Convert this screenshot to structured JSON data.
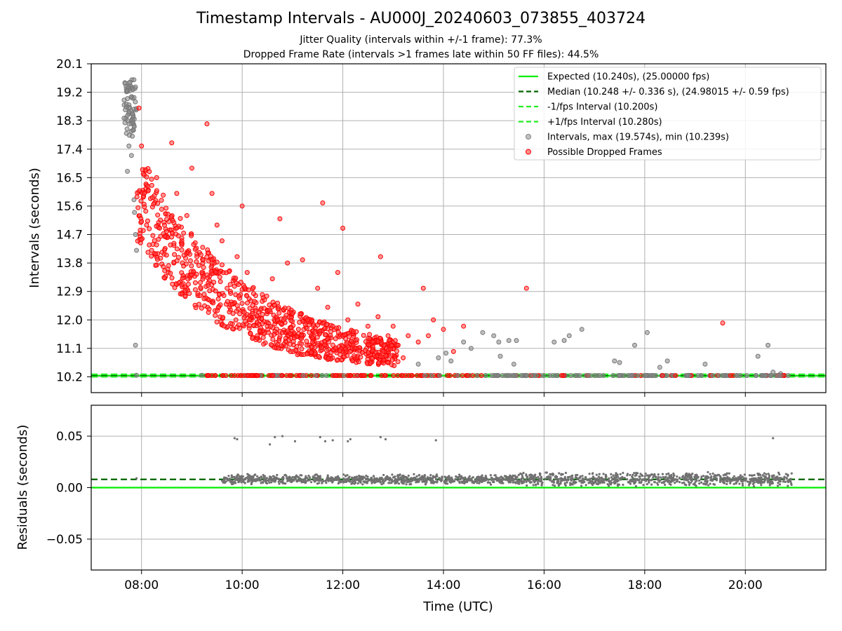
{
  "header": {
    "title": "Timestamp Intervals - AU000J_20240603_073855_403724",
    "subtitle1": "Jitter Quality (intervals within +/-1 frame): 77.3%",
    "subtitle2": "Dropped Frame Rate (intervals >1 frames late within 50 FF files): 44.5%"
  },
  "chart_data": [
    {
      "type": "scatter",
      "panel": "top",
      "ylabel": "Intervals (seconds)",
      "xlabel": "",
      "xlim_hours": [
        7.0,
        21.6
      ],
      "ylim": [
        9.7,
        20.1
      ],
      "yticks": [
        "10.2",
        "11.1",
        "12.0",
        "12.9",
        "13.8",
        "14.7",
        "15.6",
        "16.5",
        "17.4",
        "18.3",
        "19.2",
        "20.1"
      ],
      "xticks": [
        "08:00",
        "10:00",
        "12:00",
        "14:00",
        "16:00",
        "18:00",
        "20:00"
      ],
      "grid": true,
      "legend_position": "top-right",
      "lines": [
        {
          "name": "Expected (10.240s), (25.00000 fps)",
          "y": 10.24,
          "style": "solid",
          "color": "#00ee00"
        },
        {
          "name": "Median (10.248 +/- 0.336 s), (24.98015 +/- 0.59 fps)",
          "y": 10.248,
          "style": "dashed",
          "color": "#006400"
        },
        {
          "name": "-1/fps Interval (10.200s)",
          "y": 10.2,
          "style": "dashed",
          "color": "#22ee22"
        },
        {
          "name": "+1/fps Interval (10.280s)",
          "y": 10.28,
          "style": "dashed",
          "color": "#22ee22"
        }
      ],
      "series": [
        {
          "name": "Intervals, max (19.574s), min (10.239s)",
          "color": "#808080",
          "points": [
            [
              7.67,
              19.5
            ],
            [
              7.7,
              19.3
            ],
            [
              7.72,
              19.0
            ],
            [
              7.75,
              18.8
            ],
            [
              7.78,
              19.4
            ],
            [
              7.8,
              18.6
            ],
            [
              7.82,
              18.3
            ],
            [
              7.84,
              18.0
            ],
            [
              7.7,
              17.9
            ],
            [
              7.75,
              17.5
            ],
            [
              7.8,
              17.2
            ],
            [
              7.72,
              16.7
            ],
            [
              7.85,
              15.8
            ],
            [
              7.86,
              15.4
            ],
            [
              7.88,
              14.7
            ],
            [
              7.9,
              14.2
            ],
            [
              7.88,
              11.2
            ],
            [
              7.9,
              10.25
            ],
            [
              9.2,
              10.25
            ],
            [
              12.55,
              11.4
            ],
            [
              12.9,
              11.2
            ],
            [
              13.5,
              10.6
            ],
            [
              13.9,
              10.8
            ],
            [
              14.05,
              10.95
            ],
            [
              14.15,
              10.7
            ],
            [
              14.4,
              11.3
            ],
            [
              14.55,
              11.1
            ],
            [
              14.78,
              11.6
            ],
            [
              15.0,
              11.5
            ],
            [
              15.1,
              11.3
            ],
            [
              15.13,
              10.85
            ],
            [
              15.3,
              11.35
            ],
            [
              15.45,
              11.35
            ],
            [
              15.4,
              10.6
            ],
            [
              16.2,
              11.3
            ],
            [
              16.4,
              11.35
            ],
            [
              16.5,
              11.5
            ],
            [
              16.75,
              11.7
            ],
            [
              17.4,
              10.7
            ],
            [
              17.5,
              10.65
            ],
            [
              17.8,
              11.2
            ],
            [
              18.05,
              11.6
            ],
            [
              18.3,
              10.5
            ],
            [
              18.45,
              10.7
            ],
            [
              19.2,
              10.6
            ],
            [
              20.25,
              10.85
            ],
            [
              20.45,
              11.2
            ],
            [
              20.55,
              10.35
            ],
            [
              20.7,
              10.3
            ]
          ]
        },
        {
          "name": "Possible Dropped Frames",
          "color": "#ff0000",
          "points": [
            [
              7.95,
              18.7
            ],
            [
              8.0,
              17.5
            ],
            [
              8.05,
              16.0
            ],
            [
              8.1,
              15.0
            ],
            [
              8.2,
              14.2
            ],
            [
              8.3,
              16.5
            ],
            [
              8.4,
              15.5
            ],
            [
              8.5,
              14.8
            ],
            [
              8.6,
              17.6
            ],
            [
              8.7,
              16.0
            ],
            [
              8.8,
              14.5
            ],
            [
              8.9,
              15.3
            ],
            [
              9.0,
              16.8
            ],
            [
              9.1,
              14.0
            ],
            [
              9.2,
              13.5
            ],
            [
              9.3,
              18.2
            ],
            [
              9.4,
              16.0
            ],
            [
              9.5,
              15.0
            ],
            [
              9.6,
              14.5
            ],
            [
              9.7,
              13.0
            ],
            [
              9.8,
              12.5
            ],
            [
              9.9,
              14.0
            ],
            [
              10.0,
              15.6
            ],
            [
              10.1,
              13.5
            ],
            [
              10.2,
              12.2
            ],
            [
              10.3,
              11.5
            ],
            [
              10.4,
              12.8
            ],
            [
              10.5,
              11.8
            ],
            [
              10.6,
              13.3
            ],
            [
              10.7,
              12.0
            ],
            [
              10.75,
              15.2
            ],
            [
              10.8,
              11.6
            ],
            [
              10.9,
              13.8
            ],
            [
              11.0,
              12.2
            ],
            [
              11.1,
              10.9
            ],
            [
              11.2,
              13.9
            ],
            [
              11.3,
              12.0
            ],
            [
              11.4,
              11.3
            ],
            [
              11.5,
              13.0
            ],
            [
              11.6,
              15.7
            ],
            [
              11.7,
              12.4
            ],
            [
              11.8,
              11.8
            ],
            [
              11.9,
              13.5
            ],
            [
              12.0,
              14.9
            ],
            [
              12.1,
              12.0
            ],
            [
              12.2,
              11.2
            ],
            [
              12.3,
              12.5
            ],
            [
              12.5,
              11.8
            ],
            [
              12.6,
              11.3
            ],
            [
              12.7,
              12.1
            ],
            [
              12.75,
              14.0
            ],
            [
              12.8,
              11.0
            ],
            [
              12.9,
              11.5
            ],
            [
              13.0,
              11.8
            ],
            [
              13.1,
              11.2
            ],
            [
              13.2,
              10.8
            ],
            [
              13.3,
              11.5
            ],
            [
              13.5,
              11.3
            ],
            [
              13.6,
              13.0
            ],
            [
              13.7,
              11.5
            ],
            [
              13.8,
              12.0
            ],
            [
              14.0,
              11.7
            ],
            [
              14.2,
              11.0
            ],
            [
              14.4,
              11.8
            ],
            [
              15.65,
              13.0
            ],
            [
              19.55,
              11.9
            ]
          ]
        }
      ]
    },
    {
      "type": "scatter",
      "panel": "bottom",
      "xlabel": "Time (UTC)",
      "ylabel": "Residuals (seconds)",
      "xlim_hours": [
        7.0,
        21.6
      ],
      "ylim": [
        -0.08,
        0.08
      ],
      "yticks": [
        "0.05",
        "0.00",
        "−0.05"
      ],
      "xticks": [
        "08:00",
        "10:00",
        "12:00",
        "14:00",
        "16:00",
        "18:00",
        "20:00"
      ],
      "grid": true,
      "lines": [
        {
          "name": "Expected",
          "y": 0.0,
          "style": "solid",
          "color": "#00ee00"
        },
        {
          "name": "Median",
          "y": 0.008,
          "style": "dashed",
          "color": "#006400"
        }
      ],
      "series": [
        {
          "name": "Residuals",
          "color": "#707070",
          "x_range_hours": [
            9.6,
            20.95
          ],
          "center": 0.008,
          "spread": 0.004,
          "outliers": [
            [
              9.85,
              0.048
            ],
            [
              9.9,
              0.047
            ],
            [
              10.55,
              0.042
            ],
            [
              10.65,
              0.049
            ],
            [
              10.8,
              0.05
            ],
            [
              11.05,
              0.045
            ],
            [
              11.55,
              0.049
            ],
            [
              11.65,
              0.045
            ],
            [
              11.8,
              0.046
            ],
            [
              12.1,
              0.045
            ],
            [
              12.15,
              0.047
            ],
            [
              12.75,
              0.049
            ],
            [
              12.85,
              0.047
            ],
            [
              13.85,
              0.046
            ],
            [
              20.55,
              0.048
            ]
          ]
        }
      ]
    }
  ]
}
